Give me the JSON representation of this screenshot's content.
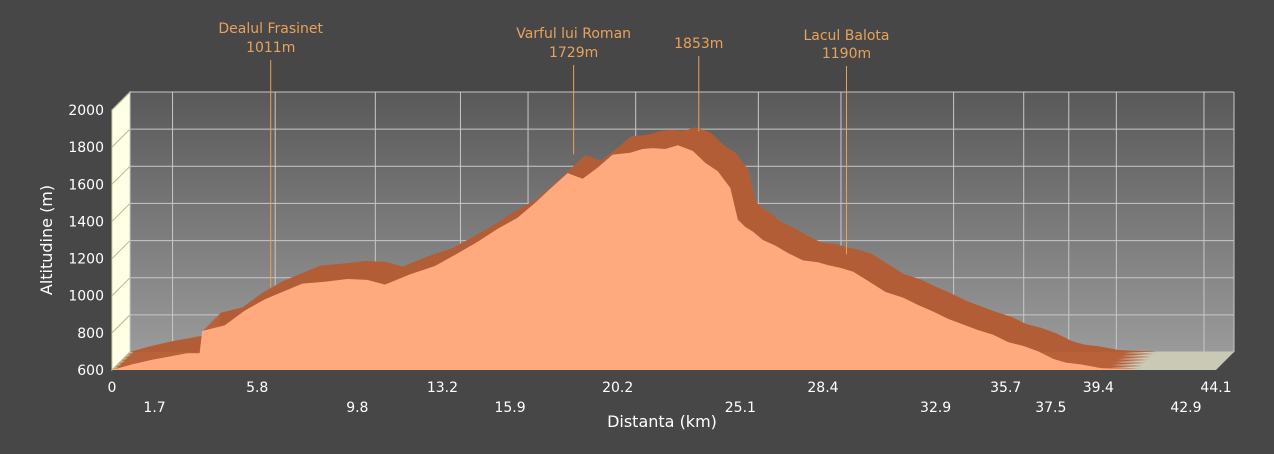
{
  "chart_data": {
    "type": "area",
    "title": "",
    "xlabel": "Distanta (km)",
    "ylabel": "Altitudine (m)",
    "xlim": [
      0,
      44.1
    ],
    "ylim": [
      600,
      2000
    ],
    "grid": true,
    "x_ticks": [
      "0",
      "1.7",
      "5.8",
      "9.8",
      "13.2",
      "15.9",
      "20.2",
      "25.1",
      "28.4",
      "32.9",
      "35.7",
      "37.5",
      "39.4",
      "42.9",
      "44.1"
    ],
    "y_ticks": [
      600,
      800,
      1000,
      1200,
      1400,
      1600,
      1800,
      2000
    ],
    "annotations": [
      {
        "name": "Dealul Frasinet",
        "label": "1011m",
        "x": 6.1,
        "y": 1011
      },
      {
        "name": "Varful lui Roman",
        "label": "1729m",
        "x": 18.2,
        "y": 1729
      },
      {
        "name": "",
        "label": "1853m",
        "x": 23.2,
        "y": 1853
      },
      {
        "name": "Lacul Balota",
        "label": "1190m",
        "x": 29.1,
        "y": 1190
      }
    ],
    "x": [
      0,
      0.8,
      1.6,
      2.2,
      3.0,
      3.5,
      3.6,
      4.5,
      5.3,
      6.1,
      6.8,
      7.6,
      8.5,
      9.4,
      10.2,
      10.9,
      11.9,
      12.9,
      13.7,
      14.6,
      15.4,
      16.2,
      16.9,
      17.5,
      18.2,
      18.8,
      19.4,
      20.0,
      20.7,
      21.2,
      21.6,
      22.1,
      22.6,
      23.2,
      23.7,
      24.2,
      24.7,
      25.0,
      25.3,
      25.6,
      26.0,
      26.5,
      27.0,
      27.6,
      28.2,
      28.6,
      29.1,
      29.6,
      30.2,
      30.9,
      31.6,
      32.2,
      32.8,
      33.4,
      34.0,
      34.6,
      35.2,
      35.8,
      36.4,
      37.0,
      37.6,
      38.1,
      38.7,
      39.5,
      40.3,
      41.0,
      41.8,
      42.5,
      44.1
    ],
    "values": [
      600,
      630,
      655,
      670,
      690,
      690,
      810,
      840,
      920,
      980,
      1020,
      1065,
      1075,
      1090,
      1085,
      1060,
      1115,
      1160,
      1220,
      1290,
      1360,
      1420,
      1500,
      1575,
      1660,
      1630,
      1690,
      1760,
      1770,
      1790,
      1795,
      1790,
      1810,
      1780,
      1715,
      1670,
      1580,
      1410,
      1370,
      1345,
      1300,
      1270,
      1230,
      1190,
      1180,
      1165,
      1150,
      1130,
      1080,
      1020,
      990,
      950,
      915,
      875,
      845,
      815,
      790,
      750,
      730,
      700,
      660,
      640,
      630,
      610,
      605,
      600,
      600,
      600,
      600
    ]
  }
}
